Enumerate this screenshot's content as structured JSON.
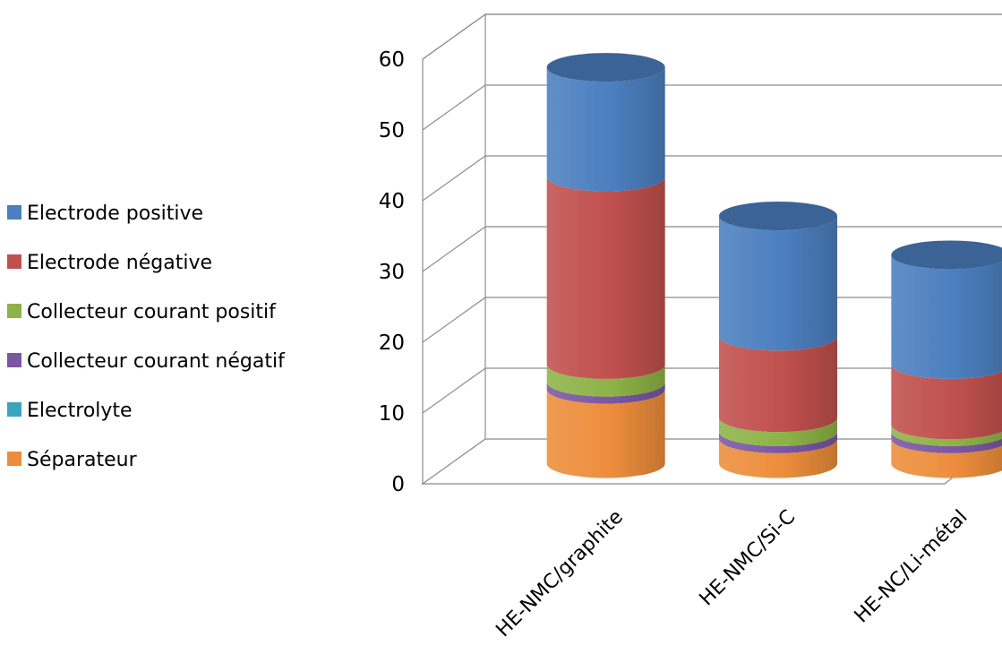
{
  "chart_data": {
    "type": "bar",
    "stacked": true,
    "three_d": true,
    "bar_shape": "cylinder",
    "title": "",
    "xlabel": "",
    "ylabel": "",
    "ylim": [
      0,
      60
    ],
    "yticks": [
      0,
      10,
      20,
      30,
      40,
      50,
      60
    ],
    "grid": true,
    "legend_position": "left",
    "categories": [
      "HE-NMC/graphite",
      "HE-NMC/Si-C",
      "HE-NC/Li-métal"
    ],
    "series": [
      {
        "name": "Séparateur",
        "color": "#ED8D3C",
        "values": [
          10.5,
          3.5,
          3.5
        ]
      },
      {
        "name": "Electrolyte",
        "color": "#3AA4BE",
        "values": [
          0,
          0,
          0
        ]
      },
      {
        "name": "Collecteur courant négatif",
        "color": "#7A57A1",
        "values": [
          1,
          1,
          1
        ]
      },
      {
        "name": "Collecteur courant positif",
        "color": "#8DB347",
        "values": [
          2.5,
          2,
          1
        ]
      },
      {
        "name": "Electrode négative",
        "color": "#C0504D",
        "values": [
          26.5,
          11.5,
          8.5
        ]
      },
      {
        "name": "Electrode positive",
        "color": "#4B7FBF",
        "values": [
          15.5,
          17,
          15.5
        ]
      }
    ],
    "legend_order": [
      "Electrode positive",
      "Electrode négative",
      "Collecteur courant positif",
      "Collecteur courant négatif",
      "Electrolyte",
      "Séparateur"
    ]
  }
}
